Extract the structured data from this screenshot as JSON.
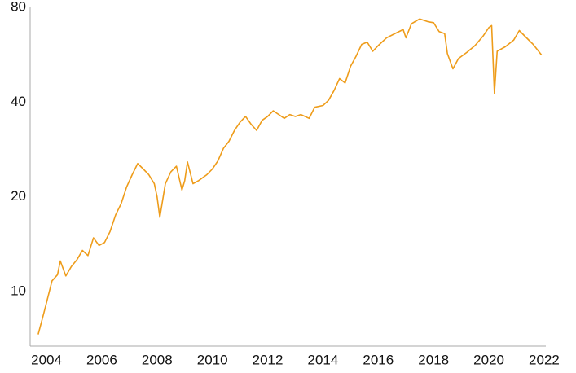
{
  "chart_data": {
    "type": "line",
    "yscale": "log",
    "grid": false,
    "xlim": [
      2003.41,
      2022.06
    ],
    "xticks": [
      2004,
      2006,
      2008,
      2010,
      2012,
      2014,
      2016,
      2018,
      2020,
      2022
    ],
    "ylim": [
      6.7,
      80
    ],
    "yticks": [
      10,
      20,
      40,
      80
    ],
    "series": [
      {
        "color": "#ee9c1a",
        "x": [
          2003.7,
          2003.9,
          2004.0,
          2004.2,
          2004.4,
          2004.5,
          2004.7,
          2004.9,
          2005.1,
          2005.3,
          2005.5,
          2005.7,
          2005.9,
          2006.1,
          2006.3,
          2006.5,
          2006.7,
          2006.9,
          2007.1,
          2007.3,
          2007.5,
          2007.7,
          2007.9,
          2008.0,
          2008.1,
          2008.3,
          2008.5,
          2008.7,
          2008.9,
          2009.0,
          2009.1,
          2009.3,
          2009.5,
          2009.8,
          2010.0,
          2010.2,
          2010.4,
          2010.6,
          2010.8,
          2011.0,
          2011.2,
          2011.4,
          2011.6,
          2011.8,
          2012.0,
          2012.2,
          2012.4,
          2012.6,
          2012.8,
          2013.0,
          2013.2,
          2013.5,
          2013.7,
          2014.0,
          2014.2,
          2014.4,
          2014.6,
          2014.8,
          2015.0,
          2015.2,
          2015.4,
          2015.6,
          2015.8,
          2016.0,
          2016.3,
          2016.6,
          2016.9,
          2017.0,
          2017.2,
          2017.5,
          2017.8,
          2018.0,
          2018.2,
          2018.4,
          2018.5,
          2018.7,
          2018.9,
          2019.2,
          2019.5,
          2019.8,
          2020.0,
          2020.1,
          2020.2,
          2020.3,
          2020.6,
          2020.9,
          2021.1,
          2021.4,
          2021.6,
          2021.8,
          2021.9
        ],
        "values": [
          7.3,
          8.5,
          9.2,
          10.8,
          11.3,
          12.5,
          11.2,
          12.0,
          12.6,
          13.5,
          13.0,
          14.8,
          14.0,
          14.3,
          15.5,
          17.5,
          19.0,
          21.5,
          23.5,
          25.5,
          24.5,
          23.5,
          22.0,
          20.0,
          17.2,
          22.0,
          24.0,
          25.0,
          21.0,
          22.5,
          25.8,
          22.0,
          22.5,
          23.5,
          24.5,
          26.0,
          28.5,
          30.0,
          32.5,
          34.5,
          36.0,
          34.0,
          32.5,
          35.0,
          36.0,
          37.5,
          36.5,
          35.5,
          36.5,
          36.0,
          36.5,
          35.5,
          38.5,
          39.0,
          40.5,
          43.5,
          47.5,
          46.0,
          52.0,
          56.0,
          61.0,
          62.0,
          58.0,
          60.5,
          64.0,
          66.0,
          68.0,
          64.0,
          71.0,
          73.5,
          72.0,
          71.5,
          67.0,
          66.0,
          57.0,
          51.0,
          55.0,
          57.5,
          60.5,
          65.0,
          69.0,
          70.0,
          42.6,
          58.0,
          60.0,
          63.0,
          67.5,
          63.5,
          61.0,
          58.0,
          56.5
        ]
      }
    ]
  }
}
